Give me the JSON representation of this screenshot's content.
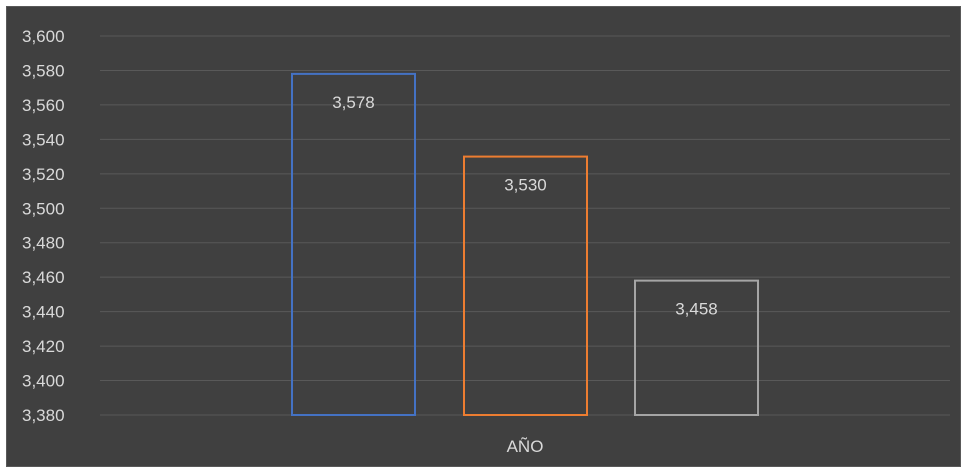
{
  "chart_data": {
    "type": "bar",
    "categories": [
      "AÑO"
    ],
    "series": [
      {
        "value": 3578,
        "label": "3,578",
        "color": "#4472c4"
      },
      {
        "value": 3530,
        "label": "3,530",
        "color": "#ed7d31"
      },
      {
        "value": 3458,
        "label": "3,458",
        "color": "#a5a5a5"
      }
    ],
    "ylim": [
      3380,
      3600
    ],
    "ytick_step": 20,
    "ytick_labels": [
      "3,380",
      "3,400",
      "3,420",
      "3,440",
      "3,460",
      "3,480",
      "3,500",
      "3,520",
      "3,540",
      "3,560",
      "3,580",
      "3,600"
    ],
    "grid": true,
    "bar_style": "outline",
    "colors": {
      "background": "#404040",
      "gridline": "#595959",
      "text": "#d9d9d9"
    }
  }
}
